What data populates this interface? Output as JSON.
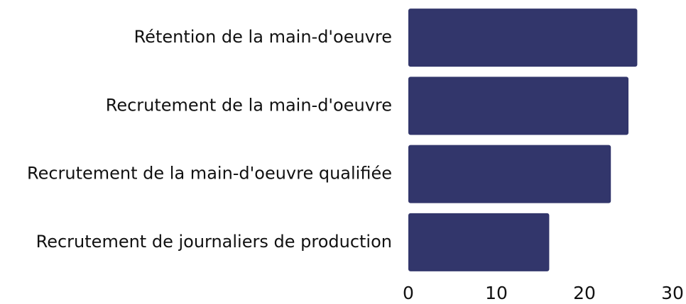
{
  "chart_data": {
    "type": "barh",
    "categories": [
      "Rétention de la main-d'oeuvre",
      "Recrutement de la main-d'oeuvre",
      "Recrutement de la main-d'oeuvre qualifiée",
      "Recrutement de journaliers de production"
    ],
    "values": [
      26,
      25,
      23,
      16
    ],
    "color": "#32366b",
    "xlim": [
      0,
      30
    ],
    "xticks": [
      0,
      10,
      20,
      30
    ],
    "grid": false
  }
}
